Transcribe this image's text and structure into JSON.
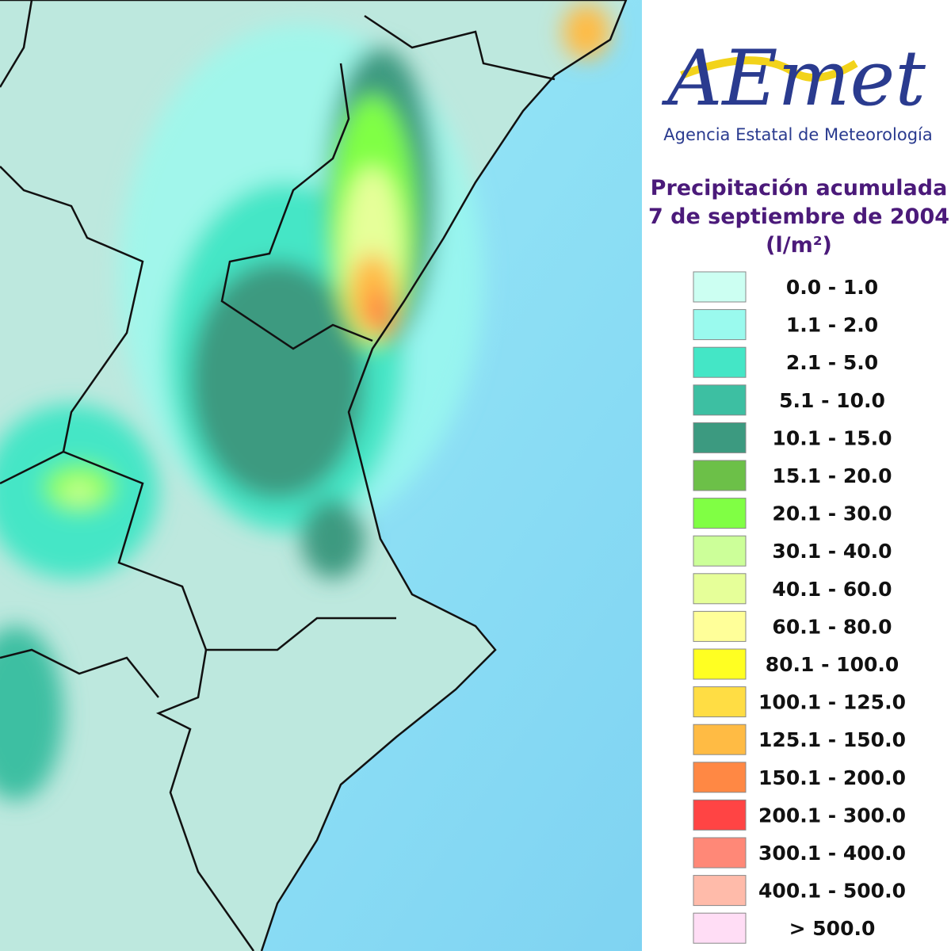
{
  "logo": {
    "wordmark": "AEmet",
    "agency": "Agencia Estatal de Meteorología"
  },
  "title": {
    "lines": [
      "Precipitación acumulada",
      "7 de septiembre de 2004",
      "(l/m²)"
    ]
  },
  "legend": {
    "items": [
      {
        "label": "0.0 - 1.0",
        "color": "#ccfff2"
      },
      {
        "label": "1.1 - 2.0",
        "color": "#9afaee"
      },
      {
        "label": "2.1 - 5.0",
        "color": "#44e6c6"
      },
      {
        "label": "5.1 - 10.0",
        "color": "#3dbfa2"
      },
      {
        "label": "10.1 - 15.0",
        "color": "#3c9a80"
      },
      {
        "label": "15.1 - 20.0",
        "color": "#6cc048"
      },
      {
        "label": "20.1 - 30.0",
        "color": "#80ff44"
      },
      {
        "label": "30.1 - 40.0",
        "color": "#ccff99"
      },
      {
        "label": "40.1 - 60.0",
        "color": "#e6ff99"
      },
      {
        "label": "60.1 - 80.0",
        "color": "#ffff99"
      },
      {
        "label": "80.1 - 100.0",
        "color": "#ffff22"
      },
      {
        "label": "100.1 - 125.0",
        "color": "#ffdd44"
      },
      {
        "label": "125.1 - 150.0",
        "color": "#ffbb44"
      },
      {
        "label": "150.1 - 200.0",
        "color": "#ff8844"
      },
      {
        "label": "200.1 - 300.0",
        "color": "#ff4444"
      },
      {
        "label": "300.1 - 400.0",
        "color": "#ff8877"
      },
      {
        "label": "400.1 - 500.0",
        "color": "#ffbbaa"
      },
      {
        "label": "> 500.0",
        "color": "#ffddf5"
      }
    ]
  }
}
